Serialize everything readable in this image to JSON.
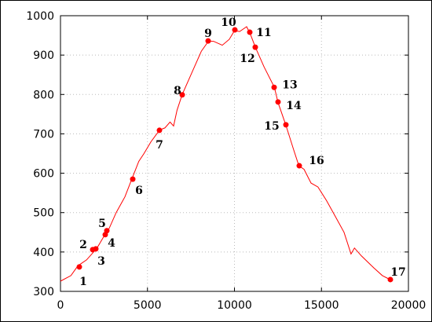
{
  "chart_data": {
    "type": "line",
    "xlim": [
      0,
      20000
    ],
    "xticks": [
      0,
      5000,
      10000,
      15000,
      20000
    ],
    "ylim": [
      300,
      1000
    ],
    "yticks": [
      300,
      400,
      500,
      600,
      700,
      800,
      900,
      1000
    ],
    "grid": true,
    "series": [
      {
        "color": "#ff0000",
        "x": [
          0,
          600,
          1000,
          1500,
          1900,
          2100,
          2500,
          2800,
          3200,
          3700,
          4100,
          4500,
          4800,
          5200,
          5700,
          6000,
          6300,
          6500,
          6700,
          7000,
          7600,
          8100,
          8500,
          8800,
          9300,
          9700,
          10000,
          10300,
          10700,
          10900,
          11200,
          11700,
          12300,
          12500,
          12950,
          13400,
          13700,
          14000,
          14400,
          14800,
          15300,
          15800,
          16300,
          16700,
          16900,
          17300,
          18000,
          18500,
          18950
        ],
        "values": [
          326,
          340,
          365,
          380,
          400,
          410,
          440,
          460,
          500,
          540,
          585,
          630,
          650,
          680,
          710,
          715,
          730,
          720,
          760,
          800,
          860,
          910,
          935,
          935,
          925,
          940,
          962,
          960,
          972,
          955,
          920,
          870,
          818,
          780,
          723,
          660,
          619,
          610,
          575,
          565,
          530,
          490,
          450,
          395,
          410,
          390,
          360,
          340,
          330
        ]
      },
      {
        "color": "#ff0000",
        "labels": [
          "1",
          "2",
          "3",
          "4",
          "5",
          "6",
          "7",
          "8",
          "9",
          "10",
          "11",
          "12",
          "13",
          "14",
          "15",
          "16",
          "17"
        ],
        "x": [
          1084,
          1851,
          2032,
          2573,
          2664,
          4153,
          5688,
          6998,
          8488,
          10023,
          10880,
          11196,
          12280,
          12506,
          12957,
          13725,
          18962
        ],
        "values": [
          362,
          406,
          408,
          444,
          454,
          585,
          709,
          799,
          936,
          964,
          958,
          920,
          818,
          781,
          723,
          619,
          330
        ]
      }
    ]
  }
}
